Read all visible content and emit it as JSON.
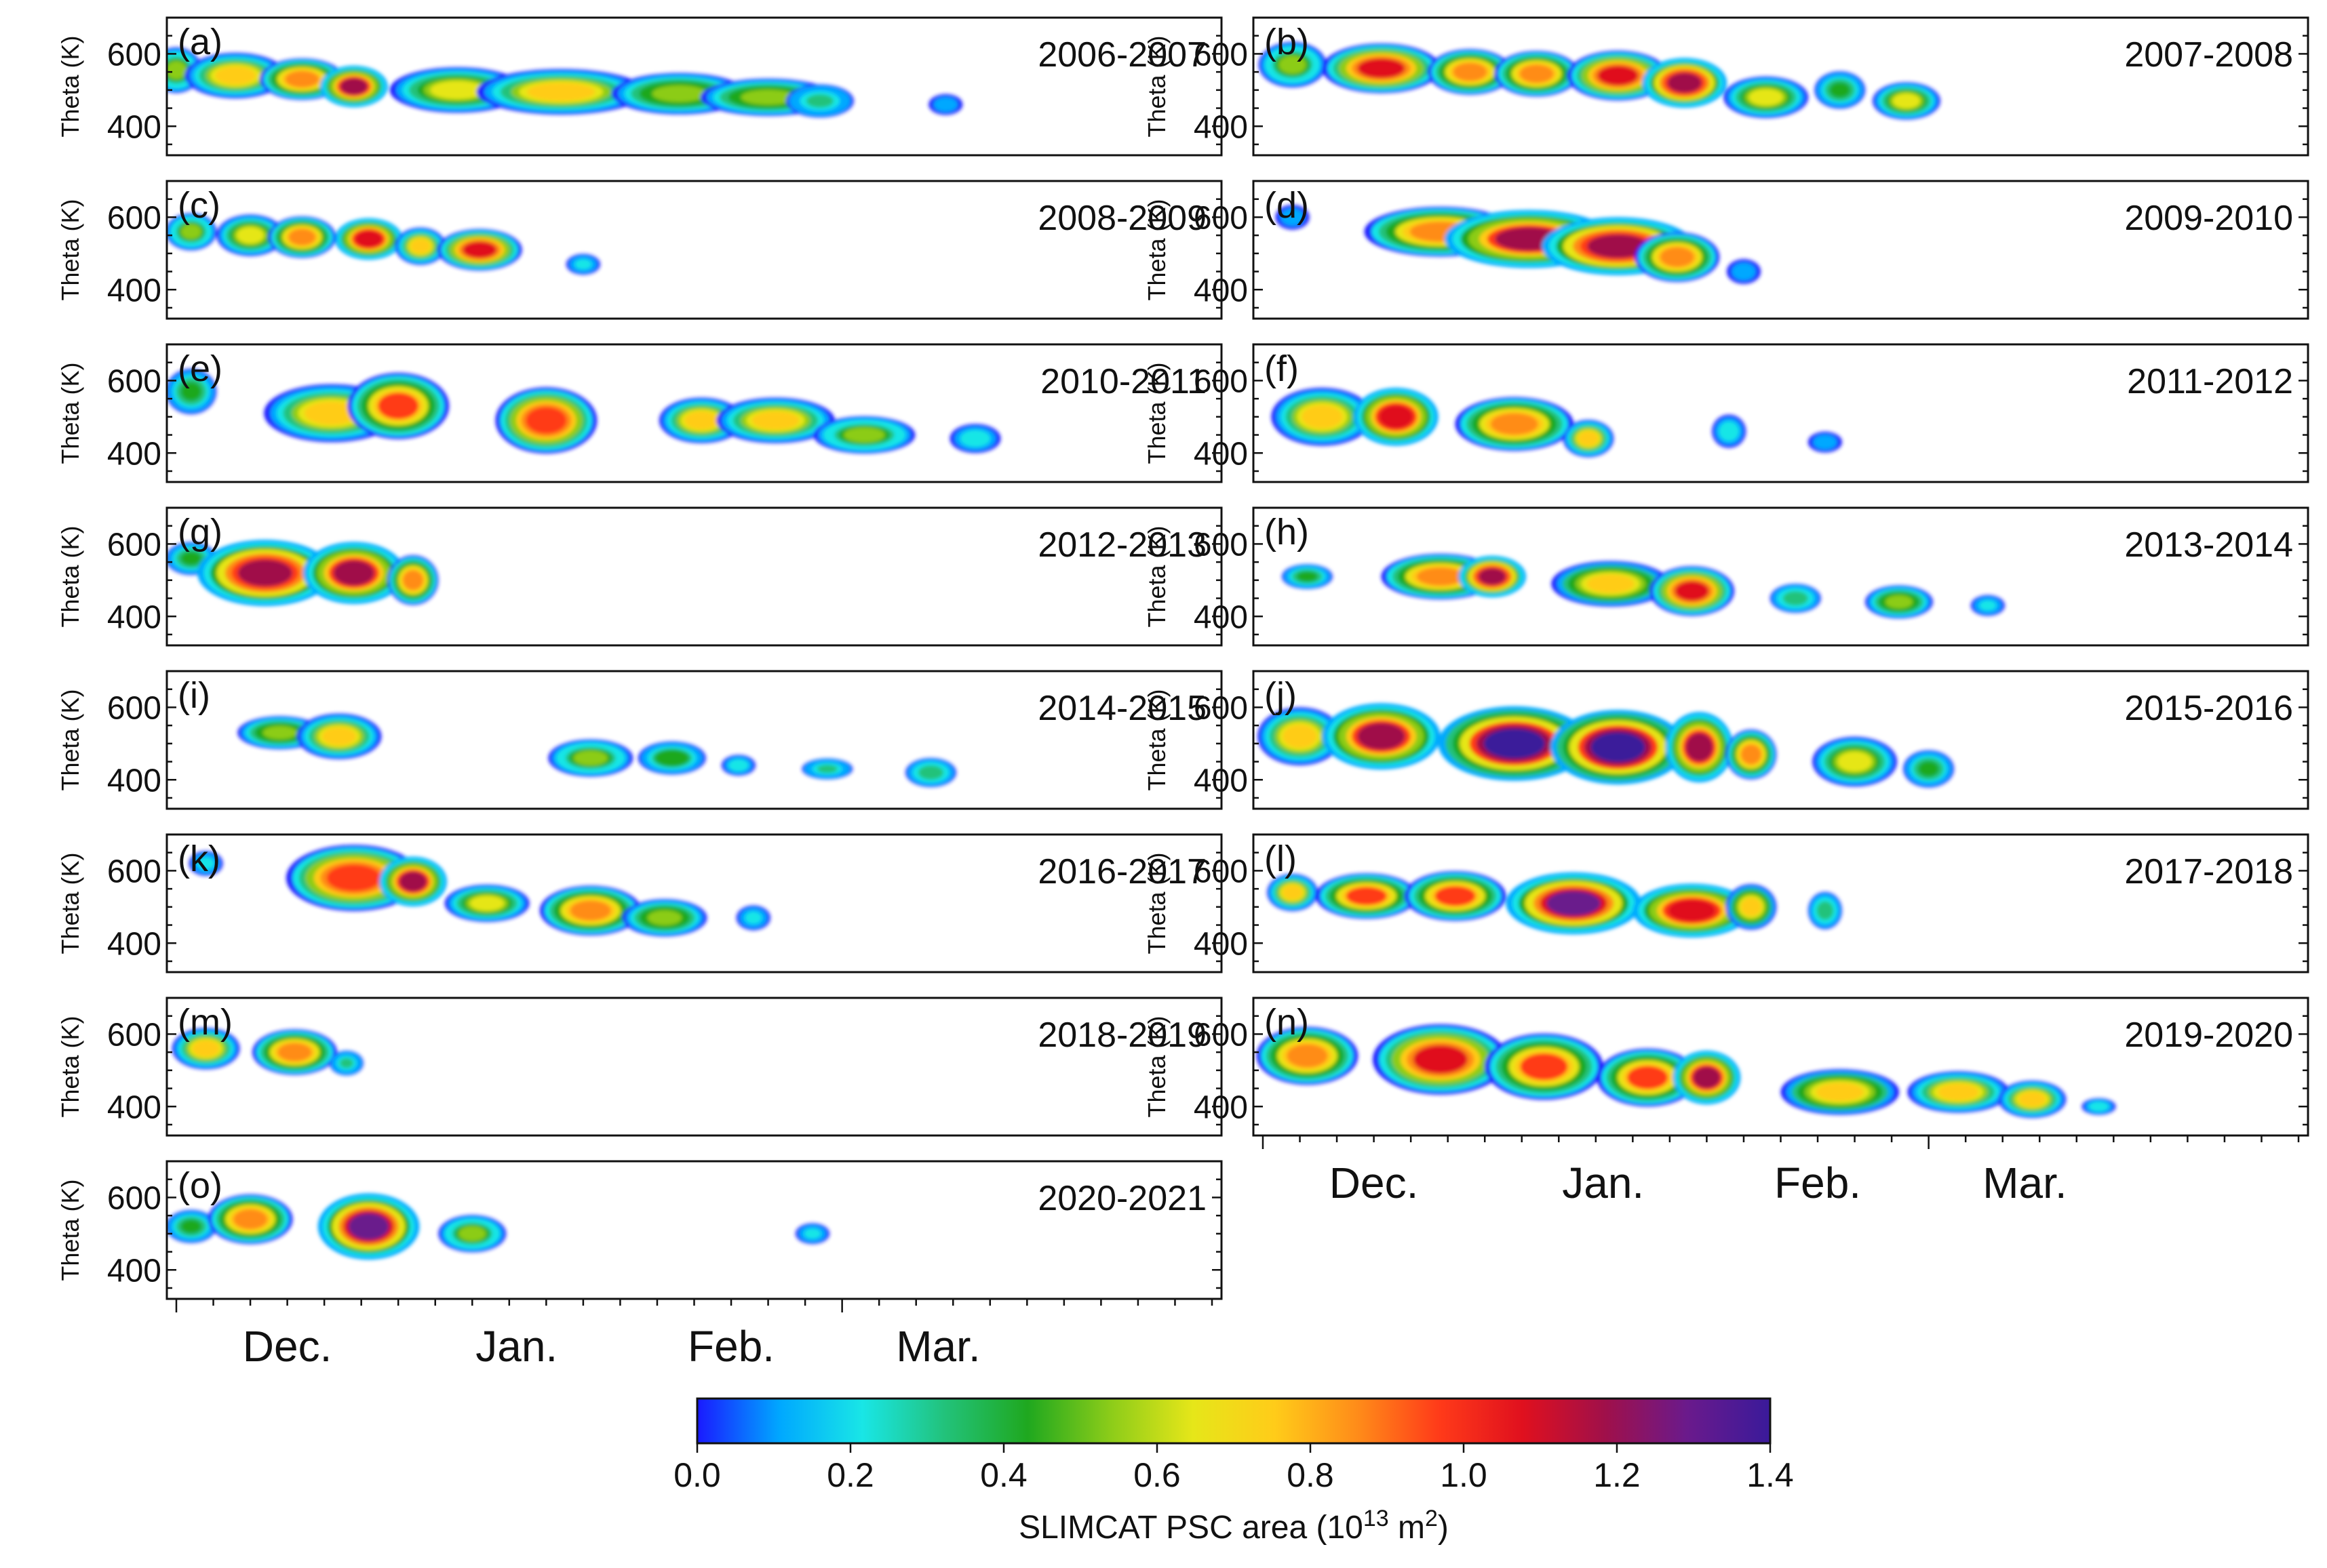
{
  "chart_data": {
    "type": "heatmap",
    "title": "",
    "ylabel": "Theta (K)",
    "xlabel": "",
    "y_ticks": [
      400,
      600
    ],
    "y_tick_labels": [
      "400",
      "600"
    ],
    "ylim": [
      320,
      700
    ],
    "x_domain_days": [
      0,
      140
    ],
    "month_labels": [
      "Dec.",
      "Jan.",
      "Feb.",
      "Mar."
    ],
    "month_label_days": [
      15,
      46,
      75,
      103
    ],
    "month_boundary_days": [
      0,
      31,
      62,
      90
    ],
    "colorbar": {
      "label": "SLIMCAT PSC area (10",
      "label_exponent": "13",
      "label_unit": " m",
      "label_unit_exponent": "2",
      "label_end": ")",
      "min": 0.0,
      "max": 1.4,
      "ticks": [
        "0.0",
        "0.2",
        "0.4",
        "0.6",
        "0.8",
        "1.0",
        "1.2",
        "1.4"
      ],
      "colors": [
        "#1a1aff",
        "#00a8ff",
        "#19e6e6",
        "#22c27a",
        "#1fa81f",
        "#8ccc19",
        "#e6e619",
        "#ffcc19",
        "#ff8c19",
        "#ff3a19",
        "#e0101e",
        "#a0104a",
        "#6a1a8c",
        "#3a1a9a"
      ]
    },
    "panels": [
      {
        "letter": "(a)",
        "season": "2006-2007",
        "blobs": [
          [
            0,
            555,
            3,
            55,
            0.5
          ],
          [
            8,
            540,
            6,
            55,
            0.75
          ],
          [
            17,
            530,
            5,
            50,
            0.9
          ],
          [
            24,
            510,
            4,
            50,
            1.15
          ],
          [
            38,
            500,
            8,
            55,
            0.6
          ],
          [
            52,
            495,
            10,
            55,
            0.75
          ],
          [
            68,
            490,
            8,
            50,
            0.55
          ],
          [
            80,
            480,
            8,
            45,
            0.55
          ],
          [
            87,
            470,
            4,
            40,
            0.3
          ],
          [
            104,
            460,
            2,
            25,
            0.15
          ]
        ]
      },
      {
        "letter": "(b)",
        "season": "2007-2008",
        "blobs": [
          [
            4,
            570,
            4,
            55,
            0.5
          ],
          [
            16,
            560,
            7,
            60,
            1.05
          ],
          [
            28,
            550,
            5,
            55,
            0.85
          ],
          [
            37,
            545,
            5,
            55,
            0.9
          ],
          [
            48,
            540,
            6,
            60,
            1.05
          ],
          [
            57,
            520,
            5,
            60,
            1.2
          ],
          [
            68,
            480,
            5,
            50,
            0.6
          ],
          [
            78,
            500,
            3,
            45,
            0.4
          ],
          [
            87,
            470,
            4,
            45,
            0.6
          ]
        ]
      },
      {
        "letter": "(c)",
        "season": "2008-2009",
        "blobs": [
          [
            2,
            560,
            3,
            45,
            0.5
          ],
          [
            10,
            550,
            4,
            50,
            0.65
          ],
          [
            17,
            545,
            4,
            50,
            0.85
          ],
          [
            26,
            540,
            4,
            50,
            1.1
          ],
          [
            33,
            520,
            3,
            45,
            0.75
          ],
          [
            41,
            510,
            5,
            50,
            1.05
          ],
          [
            55,
            470,
            2,
            25,
            0.2
          ]
        ]
      },
      {
        "letter": "(d)",
        "season": "2009-2010",
        "blobs": [
          [
            4,
            600,
            2,
            30,
            0.15
          ],
          [
            24,
            560,
            9,
            60,
            0.9
          ],
          [
            36,
            540,
            10,
            70,
            1.15
          ],
          [
            48,
            520,
            9,
            70,
            1.2
          ],
          [
            56,
            490,
            5,
            60,
            0.85
          ],
          [
            65,
            450,
            2,
            30,
            0.15
          ]
        ]
      },
      {
        "letter": "(e)",
        "season": "2010-2011",
        "blobs": [
          [
            2,
            570,
            3,
            55,
            0.4
          ],
          [
            21,
            510,
            8,
            70,
            0.75
          ],
          [
            30,
            530,
            6,
            80,
            0.95
          ],
          [
            50,
            490,
            6,
            80,
            1.0
          ],
          [
            71,
            490,
            5,
            55,
            0.7
          ],
          [
            81,
            490,
            7,
            55,
            0.75
          ],
          [
            93,
            450,
            6,
            45,
            0.5
          ],
          [
            108,
            440,
            3,
            35,
            0.25
          ]
        ]
      },
      {
        "letter": "(f)",
        "season": "2011-2012",
        "blobs": [
          [
            8,
            500,
            6,
            70,
            0.75
          ],
          [
            18,
            500,
            5,
            70,
            1.1
          ],
          [
            34,
            480,
            7,
            65,
            0.9
          ],
          [
            44,
            440,
            3,
            45,
            0.7
          ],
          [
            63,
            460,
            2,
            40,
            0.25
          ],
          [
            76,
            430,
            2,
            25,
            0.15
          ]
        ]
      },
      {
        "letter": "(g)",
        "season": "2012-2013",
        "blobs": [
          [
            2,
            560,
            3,
            40,
            0.4
          ],
          [
            12,
            520,
            8,
            80,
            1.2
          ],
          [
            24,
            520,
            6,
            75,
            1.15
          ],
          [
            32,
            500,
            3,
            60,
            0.85
          ]
        ]
      },
      {
        "letter": "(h)",
        "season": "2013-2014",
        "blobs": [
          [
            6,
            510,
            3,
            30,
            0.4
          ],
          [
            24,
            510,
            7,
            55,
            0.9
          ],
          [
            31,
            510,
            4,
            50,
            1.2
          ],
          [
            47,
            490,
            7,
            55,
            0.8
          ],
          [
            58,
            470,
            5,
            60,
            1.05
          ],
          [
            72,
            450,
            3,
            35,
            0.35
          ],
          [
            86,
            440,
            4,
            40,
            0.55
          ],
          [
            98,
            430,
            2,
            25,
            0.2
          ]
        ]
      },
      {
        "letter": "(i)",
        "season": "2014-2015",
        "blobs": [
          [
            14,
            530,
            5,
            40,
            0.55
          ],
          [
            22,
            520,
            5,
            55,
            0.75
          ],
          [
            56,
            460,
            5,
            45,
            0.5
          ],
          [
            67,
            460,
            4,
            40,
            0.45
          ],
          [
            76,
            440,
            2,
            25,
            0.25
          ],
          [
            88,
            430,
            3,
            25,
            0.3
          ],
          [
            102,
            420,
            3,
            35,
            0.35
          ]
        ]
      },
      {
        "letter": "(j)",
        "season": "2015-2016",
        "blobs": [
          [
            5,
            520,
            5,
            70,
            0.75
          ],
          [
            16,
            520,
            7,
            80,
            1.15
          ],
          [
            34,
            500,
            9,
            90,
            1.35
          ],
          [
            48,
            490,
            8,
            90,
            1.35
          ],
          [
            59,
            490,
            4,
            85,
            1.15
          ],
          [
            66,
            470,
            3,
            60,
            0.85
          ],
          [
            80,
            450,
            5,
            60,
            0.6
          ],
          [
            90,
            430,
            3,
            45,
            0.4
          ]
        ]
      },
      {
        "letter": "(k)",
        "season": "2016-2017",
        "blobs": [
          [
            4,
            620,
            2,
            30,
            0.2
          ],
          [
            24,
            580,
            8,
            80,
            1.0
          ],
          [
            32,
            570,
            4,
            60,
            1.15
          ],
          [
            42,
            510,
            5,
            45,
            0.6
          ],
          [
            56,
            490,
            6,
            60,
            0.85
          ],
          [
            66,
            470,
            5,
            45,
            0.55
          ],
          [
            78,
            470,
            2,
            30,
            0.2
          ]
        ]
      },
      {
        "letter": "(l)",
        "season": "2017-2018",
        "blobs": [
          [
            4,
            540,
            3,
            45,
            0.75
          ],
          [
            14,
            530,
            6,
            55,
            0.95
          ],
          [
            26,
            530,
            6,
            60,
            0.95
          ],
          [
            42,
            510,
            8,
            75,
            1.3
          ],
          [
            58,
            490,
            7,
            65,
            1.1
          ],
          [
            66,
            500,
            3,
            55,
            0.8
          ],
          [
            76,
            490,
            2,
            45,
            0.35
          ]
        ]
      },
      {
        "letter": "(m)",
        "season": "2018-2019",
        "blobs": [
          [
            4,
            560,
            4,
            50,
            0.75
          ],
          [
            16,
            550,
            5,
            55,
            0.85
          ],
          [
            23,
            520,
            2,
            30,
            0.3
          ]
        ]
      },
      {
        "letter": "(n)",
        "season": "2019-2020",
        "blobs": [
          [
            6,
            540,
            6,
            70,
            0.85
          ],
          [
            24,
            530,
            8,
            85,
            1.05
          ],
          [
            38,
            510,
            7,
            80,
            0.95
          ],
          [
            52,
            480,
            6,
            70,
            0.95
          ],
          [
            60,
            480,
            4,
            65,
            1.15
          ],
          [
            78,
            440,
            7,
            55,
            0.8
          ],
          [
            94,
            440,
            6,
            50,
            0.75
          ],
          [
            104,
            420,
            4,
            45,
            0.7
          ],
          [
            113,
            400,
            2,
            20,
            0.25
          ]
        ]
      },
      {
        "letter": "(o)",
        "season": "2020-2021",
        "blobs": [
          [
            2,
            520,
            3,
            40,
            0.4
          ],
          [
            10,
            540,
            5,
            60,
            0.85
          ],
          [
            26,
            520,
            6,
            80,
            1.25
          ],
          [
            40,
            500,
            4,
            45,
            0.5
          ],
          [
            86,
            500,
            2,
            25,
            0.2
          ]
        ]
      }
    ]
  }
}
